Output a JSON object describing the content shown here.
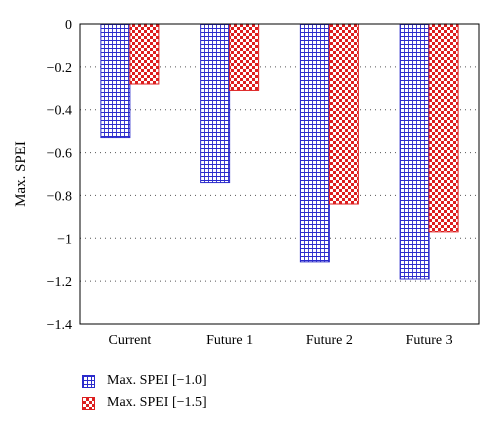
{
  "chart_data": {
    "type": "bar",
    "categories": [
      "Current",
      "Future 1",
      "Future 2",
      "Future 3"
    ],
    "series": [
      {
        "name": "Max. SPEI [−1.0]",
        "values": [
          -0.53,
          -0.74,
          -1.11,
          -1.19
        ],
        "color": "#2b2bcc",
        "pattern": "grid"
      },
      {
        "name": "Max. SPEI [−1.5]",
        "values": [
          -0.28,
          -0.31,
          -0.84,
          -0.97
        ],
        "color": "#dd1f1f",
        "pattern": "checker"
      }
    ],
    "title": "",
    "xlabel": "",
    "ylabel": "Max. SPEI",
    "ylim": [
      -1.4,
      0
    ],
    "yticks": [
      0,
      -0.2,
      -0.4,
      -0.6,
      -0.8,
      -1,
      -1.2,
      -1.4
    ],
    "ytick_labels": [
      "0",
      "−0.2",
      "−0.4",
      "−0.6",
      "−0.8",
      "−1",
      "−1.2",
      "−1.4"
    ],
    "grid": "horizontal dotted",
    "legend_position": "bottom-left"
  }
}
